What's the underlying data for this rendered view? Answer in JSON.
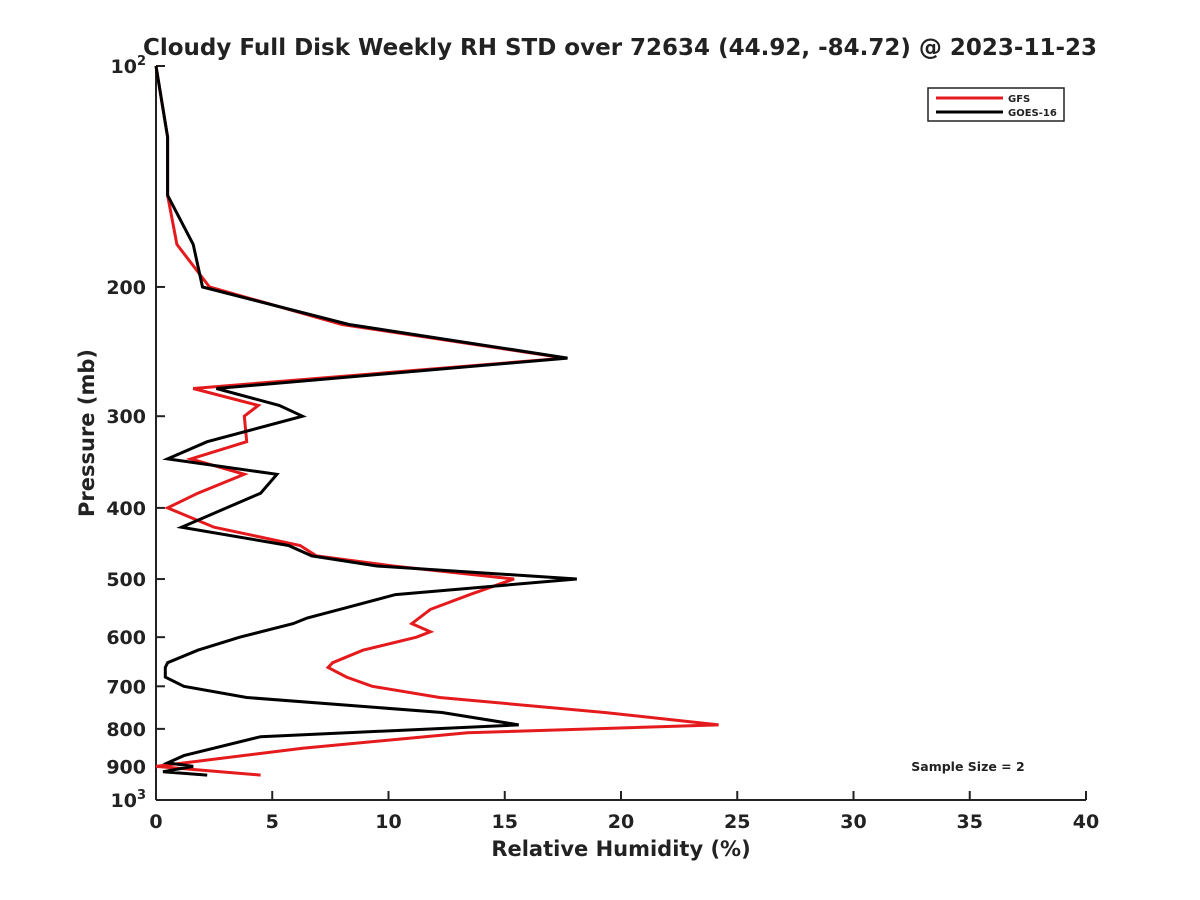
{
  "chart_data": {
    "type": "line",
    "title": "Cloudy Full Disk Weekly RH STD over 72634 (44.92, -84.72) @ 2023-11-23",
    "xlabel": "Relative Humidity (%)",
    "ylabel": "Pressure (mb)",
    "xlim": [
      0,
      40
    ],
    "ylim": [
      100,
      1000
    ],
    "y_scale": "log",
    "y_reversed": true,
    "grid": false,
    "legend_position": "top-right",
    "x_ticks": [
      "0",
      "5",
      "10",
      "15",
      "20",
      "25",
      "30",
      "35",
      "40"
    ],
    "y_ticks": [
      {
        "value": 100,
        "label": "10",
        "sup": "2"
      },
      {
        "value": 200,
        "label": "200",
        "sup": ""
      },
      {
        "value": 300,
        "label": "300",
        "sup": ""
      },
      {
        "value": 400,
        "label": "400",
        "sup": ""
      },
      {
        "value": 500,
        "label": "500",
        "sup": ""
      },
      {
        "value": 600,
        "label": "600",
        "sup": ""
      },
      {
        "value": 700,
        "label": "700",
        "sup": ""
      },
      {
        "value": 800,
        "label": "800",
        "sup": ""
      },
      {
        "value": 900,
        "label": "900",
        "sup": ""
      },
      {
        "value": 1000,
        "label": "10",
        "sup": "3"
      }
    ],
    "annotation": "Sample Size = 2",
    "series": [
      {
        "name": "GFS",
        "color": "#e41a1c",
        "points": [
          [
            0.0,
            100
          ],
          [
            0.5,
            125
          ],
          [
            0.5,
            150
          ],
          [
            0.9,
            175
          ],
          [
            2.3,
            200
          ],
          [
            8.0,
            225
          ],
          [
            17.6,
            250
          ],
          [
            1.6,
            275
          ],
          [
            4.4,
            290
          ],
          [
            3.8,
            300
          ],
          [
            3.9,
            325
          ],
          [
            1.5,
            343
          ],
          [
            3.8,
            360
          ],
          [
            1.8,
            382
          ],
          [
            0.5,
            400
          ],
          [
            2.5,
            425
          ],
          [
            6.2,
            450
          ],
          [
            6.9,
            465
          ],
          [
            10.2,
            480
          ],
          [
            15.4,
            500
          ],
          [
            13.5,
            525
          ],
          [
            11.8,
            550
          ],
          [
            11.0,
            575
          ],
          [
            11.8,
            590
          ],
          [
            11.2,
            600
          ],
          [
            8.9,
            625
          ],
          [
            7.6,
            650
          ],
          [
            7.4,
            660
          ],
          [
            8.2,
            680
          ],
          [
            9.3,
            700
          ],
          [
            12.2,
            725
          ],
          [
            19.3,
            760
          ],
          [
            24.2,
            790
          ],
          [
            13.4,
            810
          ],
          [
            6.3,
            850
          ],
          [
            0.0,
            900
          ],
          [
            4.5,
            925
          ]
        ]
      },
      {
        "name": "GOES-16",
        "color": "#000000",
        "points": [
          [
            0.0,
            100
          ],
          [
            0.5,
            125
          ],
          [
            0.5,
            150
          ],
          [
            1.6,
            175
          ],
          [
            2.0,
            200
          ],
          [
            8.3,
            225
          ],
          [
            17.7,
            250
          ],
          [
            2.6,
            275
          ],
          [
            5.3,
            290
          ],
          [
            6.3,
            300
          ],
          [
            2.2,
            325
          ],
          [
            0.5,
            343
          ],
          [
            5.2,
            360
          ],
          [
            4.5,
            382
          ],
          [
            1.1,
            425
          ],
          [
            5.7,
            450
          ],
          [
            6.7,
            465
          ],
          [
            9.5,
            480
          ],
          [
            18.1,
            500
          ],
          [
            10.3,
            525
          ],
          [
            7.9,
            550
          ],
          [
            6.5,
            565
          ],
          [
            5.9,
            575
          ],
          [
            3.6,
            600
          ],
          [
            1.8,
            625
          ],
          [
            0.5,
            650
          ],
          [
            0.4,
            660
          ],
          [
            0.4,
            680
          ],
          [
            1.2,
            700
          ],
          [
            3.9,
            725
          ],
          [
            12.3,
            760
          ],
          [
            15.6,
            790
          ],
          [
            4.5,
            820
          ],
          [
            1.2,
            870
          ],
          [
            0.5,
            890
          ],
          [
            1.6,
            900
          ],
          [
            0.3,
            915
          ],
          [
            2.2,
            925
          ]
        ]
      }
    ]
  }
}
